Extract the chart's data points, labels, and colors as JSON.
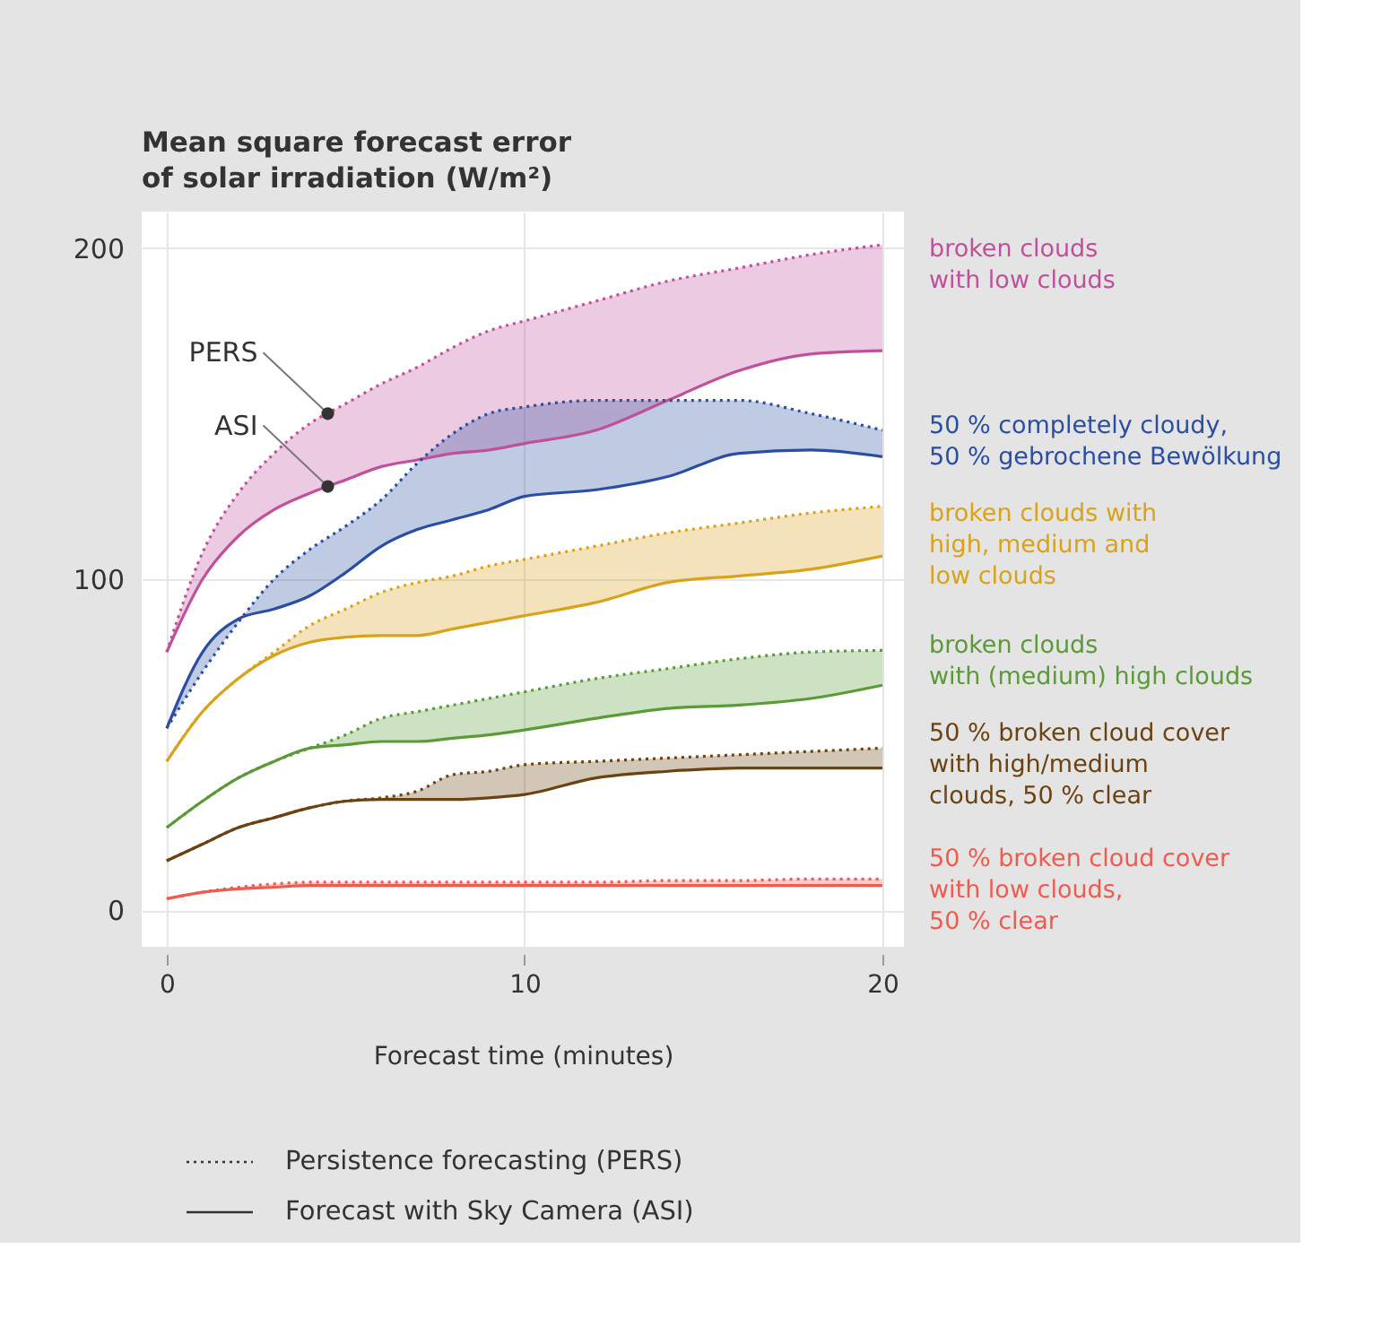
{
  "chart_data": {
    "type": "line",
    "title": "Mean square forecast error\nof solar irradiation (W/m²)",
    "xlabel": "Forecast time (minutes)",
    "x": [
      0,
      1,
      2,
      3,
      4,
      5,
      6,
      7,
      8,
      9,
      10,
      12,
      14,
      16,
      18,
      20
    ],
    "xlim": [
      -0.7,
      20.6
    ],
    "ylim": [
      -11,
      211
    ],
    "xticks": [
      0,
      10,
      20
    ],
    "yticks": [
      0,
      100,
      200
    ],
    "grid": true,
    "series": [
      {
        "name": "broken clouds\nwith low clouds",
        "color": "#c0509c",
        "line_style": "dotted",
        "values": [
          78,
          108,
          126,
          138,
          147,
          153,
          159,
          164,
          170,
          175,
          178,
          184,
          190,
          194,
          198,
          201
        ],
        "lower": [
          78,
          100,
          113,
          121,
          126,
          130,
          134,
          136,
          138,
          139,
          141,
          145,
          154,
          163,
          168,
          169
        ],
        "upper": [
          78,
          108,
          126,
          138,
          147,
          153,
          159,
          164,
          170,
          175,
          178,
          184,
          190,
          194,
          198,
          201
        ]
      },
      {
        "color": "#c0509c",
        "line_style": "solid",
        "values": [
          78,
          100,
          113,
          121,
          126,
          130,
          134,
          136,
          138,
          139,
          141,
          145,
          154,
          163,
          168,
          169
        ]
      },
      {
        "name": "50 % completely cloudy,\n50 % gebrochene Bewölkung",
        "color": "#2b4ea2",
        "line_style": "dotted",
        "values": [
          55,
          72,
          87,
          100,
          109,
          116,
          124,
          135,
          144,
          150,
          152,
          154,
          154,
          154,
          150,
          145
        ],
        "lower": [
          55,
          78,
          88,
          91,
          95,
          102,
          110,
          115,
          118,
          121,
          125,
          127,
          131,
          138,
          139,
          137
        ],
        "upper": [
          55,
          72,
          87,
          100,
          109,
          116,
          124,
          135,
          144,
          150,
          152,
          154,
          154,
          154,
          150,
          145
        ]
      },
      {
        "color": "#2b4ea2",
        "line_style": "solid",
        "values": [
          55,
          78,
          88,
          91,
          95,
          102,
          110,
          115,
          118,
          121,
          125,
          127,
          131,
          138,
          139,
          137
        ]
      },
      {
        "name": "broken clouds with\nhigh, medium and\nlow clouds",
        "color": "#d9a21b",
        "line_style": "dotted",
        "values": [
          45,
          60,
          70,
          78,
          86,
          91,
          96,
          99,
          101,
          104,
          106,
          110,
          114,
          117,
          120,
          122
        ],
        "lower": [
          45,
          60,
          70,
          77,
          81,
          82.5,
          83,
          83,
          85,
          87,
          89,
          93,
          99,
          101,
          103,
          107
        ],
        "upper": [
          45,
          60,
          70,
          78,
          86,
          91,
          96,
          99,
          101,
          104,
          106,
          110,
          114,
          117,
          120,
          122
        ]
      },
      {
        "color": "#d9a21b",
        "line_style": "solid",
        "values": [
          45,
          60,
          70,
          77,
          81,
          82.5,
          83,
          83,
          85,
          87,
          89,
          93,
          99,
          101,
          103,
          107
        ]
      },
      {
        "name": "broken clouds\nwith (medium) high clouds",
        "color": "#5a9a37",
        "line_style": "dotted",
        "values": [
          25,
          33,
          40,
          45,
          49,
          53,
          58,
          60,
          62,
          64,
          66,
          70,
          73,
          76,
          78,
          78.5
        ],
        "lower": [
          25,
          33,
          40,
          45,
          49,
          50,
          51,
          51,
          52,
          53,
          54.5,
          58,
          61,
          62,
          64,
          68
        ],
        "upper": [
          25,
          33,
          40,
          45,
          49,
          53,
          58,
          60,
          62,
          64,
          66,
          70,
          73,
          76,
          78,
          78.5
        ]
      },
      {
        "color": "#5a9a37",
        "line_style": "solid",
        "values": [
          25,
          33,
          40,
          45,
          49,
          50,
          51,
          51,
          52,
          53,
          54.5,
          58,
          61,
          62,
          64,
          68
        ]
      },
      {
        "name": "50 % broken cloud cover\nwith high/medium\nclouds, 50 % clear",
        "color": "#6b4211",
        "line_style": "dotted",
        "values": [
          15,
          20,
          25,
          28,
          31,
          33,
          34,
          36,
          41,
          42,
          44,
          45,
          46,
          47,
          48,
          49
        ],
        "lower": [
          15,
          20,
          25,
          28,
          31,
          33,
          33.5,
          33.5,
          33.5,
          34,
          35,
          40,
          42,
          43,
          43,
          43
        ],
        "upper": [
          15,
          20,
          25,
          28,
          31,
          33,
          34,
          36,
          41,
          42,
          44,
          45,
          46,
          47,
          48,
          49
        ]
      },
      {
        "color": "#6b4211",
        "line_style": "solid",
        "values": [
          15,
          20,
          25,
          28,
          31,
          33,
          33.5,
          33.5,
          33.5,
          34,
          35,
          40,
          42,
          43,
          43,
          43
        ]
      },
      {
        "name": "50 % broken cloud cover\nwith low clouds,\n50 % clear",
        "color": "#ef5b4f",
        "line_style": "dotted",
        "values": [
          3.5,
          5.5,
          7,
          8,
          8.5,
          8.5,
          8.5,
          8.5,
          8.5,
          8.5,
          8.5,
          8.5,
          9,
          9,
          9.5,
          9.5
        ],
        "lower": [
          3.5,
          5.5,
          6.5,
          7,
          7.5,
          7.5,
          7.5,
          7.5,
          7.5,
          7.5,
          7.5,
          7.5,
          7.5,
          7.5,
          7.5,
          7.5
        ],
        "upper": [
          3.5,
          5.5,
          7,
          8,
          8.5,
          8.5,
          8.5,
          8.5,
          8.5,
          8.5,
          8.5,
          8.5,
          9,
          9,
          9.5,
          9.5
        ]
      },
      {
        "color": "#ef5b4f",
        "line_style": "solid",
        "values": [
          3.5,
          5.5,
          6.5,
          7,
          7.5,
          7.5,
          7.5,
          7.5,
          7.5,
          7.5,
          7.5,
          7.5,
          7.5,
          7.5,
          7.5,
          7.5
        ]
      }
    ],
    "annotations": [
      {
        "text": "PERS",
        "x": 4.5,
        "y": 150
      },
      {
        "text": "ASI",
        "x": 4.5,
        "y": 128
      },
      "Persistence forecasting (PERS)",
      "Forecast with Sky Camera (ASI)"
    ]
  }
}
